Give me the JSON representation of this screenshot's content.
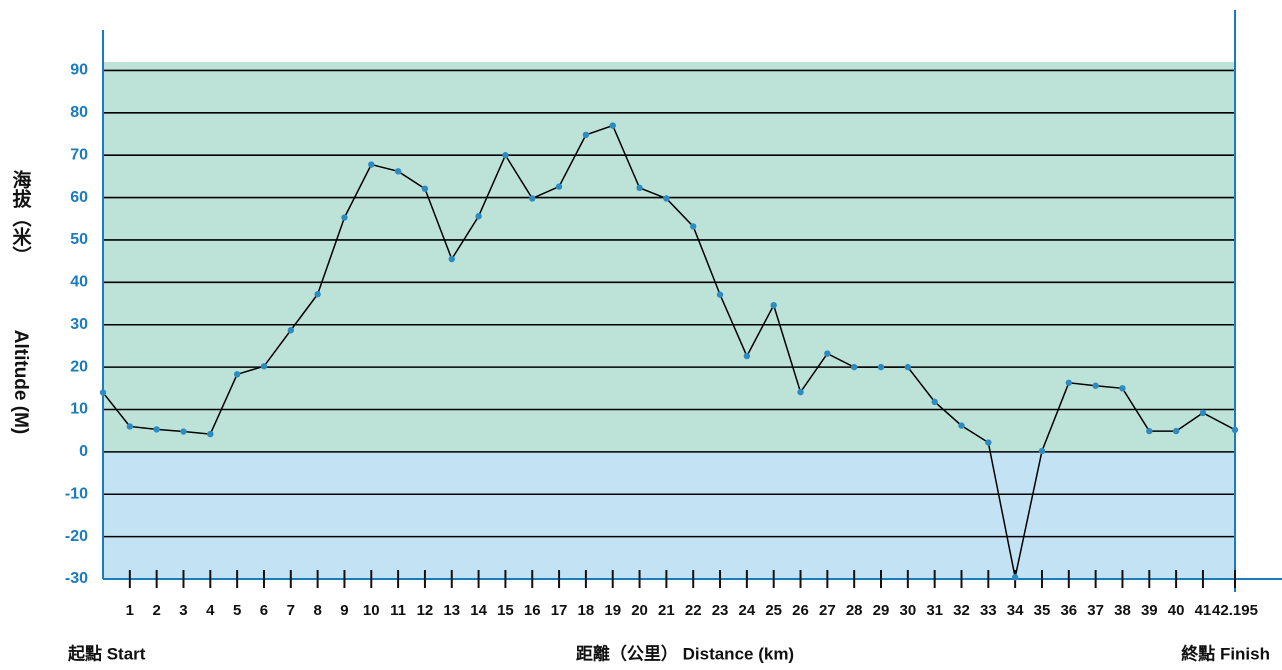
{
  "chart_data": {
    "type": "line",
    "ylabel_zh": "海拔（米）",
    "ylabel_en": "Altitude (M)",
    "start_label": "起點  Start",
    "xlabel": "距離（公里） Distance (km)",
    "finish_label": "終點  Finish",
    "x": [
      0,
      1,
      2,
      3,
      4,
      5,
      6,
      7,
      8,
      9,
      10,
      11,
      12,
      13,
      14,
      15,
      16,
      17,
      18,
      19,
      20,
      21,
      22,
      23,
      24,
      25,
      26,
      27,
      28,
      29,
      30,
      31,
      32,
      33,
      34,
      35,
      36,
      37,
      38,
      39,
      40,
      41,
      42.195
    ],
    "series": [
      {
        "name": "Altitude",
        "color": "#000000",
        "marker_color": "#2e8bc0",
        "values": [
          14,
          6,
          5.3,
          4.8,
          4.2,
          18.3,
          20.2,
          28.7,
          37.2,
          55.3,
          67.8,
          66.2,
          62.1,
          45.5,
          55.6,
          70,
          59.8,
          62.6,
          74.8,
          77,
          62.3,
          59.8,
          53.2,
          37.1,
          22.6,
          34.6,
          14.1,
          23.2,
          20,
          20,
          20,
          11.8,
          6.2,
          2.2,
          -29.6,
          0.2,
          16.3,
          15.6,
          15,
          4.9,
          4.9,
          9.2,
          5.2
        ]
      }
    ],
    "xlim": [
      0,
      42.195
    ],
    "xticks": [
      1,
      2,
      3,
      4,
      5,
      6,
      7,
      8,
      9,
      10,
      11,
      12,
      13,
      14,
      15,
      16,
      17,
      18,
      19,
      20,
      21,
      22,
      23,
      24,
      25,
      26,
      27,
      28,
      29,
      30,
      31,
      32,
      33,
      34,
      35,
      36,
      37,
      38,
      39,
      40,
      41,
      42.195
    ],
    "ylim": [
      -30,
      92
    ],
    "yticks": [
      -30,
      -20,
      -10,
      0,
      10,
      20,
      30,
      40,
      50,
      60,
      70,
      80,
      90
    ],
    "grid": true,
    "above_color": "#bde3d9",
    "below_color": "#c3e3f5",
    "axis_color": "#1a7bbf"
  }
}
